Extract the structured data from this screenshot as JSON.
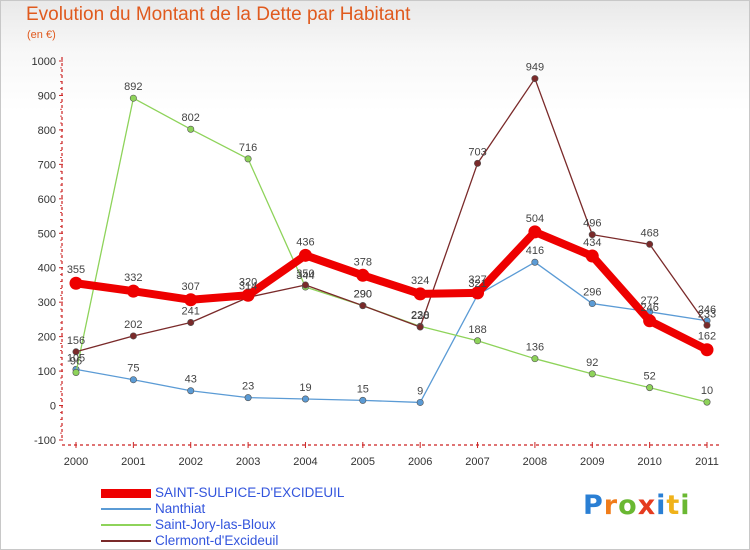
{
  "title": "Evolution du Montant de la Dette par Habitant",
  "unit_label": "(en €)",
  "logo": {
    "letters": [
      "P",
      "r",
      "o",
      "x",
      "i",
      "t",
      "i"
    ],
    "colors": [
      "#2a7fd4",
      "#f07c1a",
      "#6ab832",
      "#e53b1f",
      "#2a7fd4",
      "#f0b21a",
      "#6ab832"
    ]
  },
  "chart_data": {
    "type": "line",
    "title": "Evolution du Montant de la Dette par Habitant",
    "subtitle": "(en €)",
    "xlabel": "",
    "ylabel": "",
    "categories": [
      "2000",
      "2001",
      "2002",
      "2003",
      "2004",
      "2005",
      "2006",
      "2007",
      "2008",
      "2009",
      "2010",
      "2011"
    ],
    "ylim": [
      -100,
      1000
    ],
    "yticks": [
      "-100",
      "0",
      "100",
      "200",
      "300",
      "400",
      "500",
      "600",
      "700",
      "800",
      "900",
      "1000"
    ],
    "grid": false,
    "legend_position": "bottom-left",
    "series": [
      {
        "name": "SAINT-SULPICE-D'EXCIDEUIL",
        "color": "#ee0000",
        "emphasis": true,
        "values": [
          355,
          332,
          307,
          320,
          436,
          378,
          324,
          327,
          504,
          434,
          246,
          162
        ],
        "labels": [
          "355",
          "332",
          "307",
          "320",
          "436",
          "378",
          "324",
          "327",
          "504",
          "434",
          "246",
          "162"
        ]
      },
      {
        "name": "Nanthiat",
        "color": "#5b9bd5",
        "emphasis": false,
        "values": [
          105,
          75,
          43,
          23,
          19,
          15,
          9,
          321,
          416,
          296,
          272,
          246
        ],
        "labels": [
          "105",
          "75",
          "43",
          "23",
          "19",
          "15",
          "9",
          "321",
          "416",
          "296",
          "272",
          "246"
        ]
      },
      {
        "name": "Saint-Jory-las-Bloux",
        "color": "#8ed35a",
        "emphasis": false,
        "values": [
          96,
          892,
          802,
          716,
          344,
          290,
          230,
          188,
          136,
          92,
          52,
          10
        ],
        "labels": [
          "96",
          "892",
          "802",
          "716",
          "344",
          "290",
          "230",
          "188",
          "136",
          "92",
          "52",
          "10"
        ]
      },
      {
        "name": "Clermont-d'Excideuil",
        "color": "#7a2a2a",
        "emphasis": false,
        "values": [
          156,
          202,
          241,
          314,
          350,
          290,
          228,
          703,
          949,
          496,
          468,
          233
        ],
        "labels": [
          "156",
          "202",
          "241",
          "314",
          "350",
          "290",
          "228",
          "703",
          "949",
          "496",
          "468",
          "233"
        ]
      }
    ]
  }
}
